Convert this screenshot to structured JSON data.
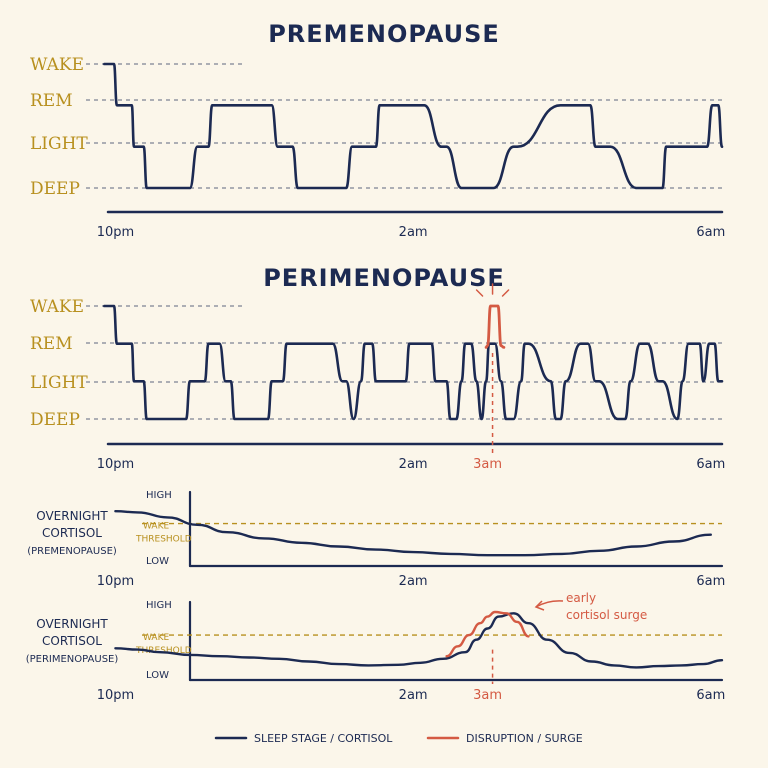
{
  "colors": {
    "line": "#1c2a52",
    "accent": "#d45a43",
    "threshold": "#b8901f",
    "background": "#fbf6ea"
  },
  "chart_data": [
    {
      "type": "line",
      "title": "PREMENOPAUSE",
      "y_categories": [
        "WAKE",
        "REM",
        "LIGHT",
        "DEEP"
      ],
      "x_ticks": [
        "10pm",
        "2am",
        "6am"
      ],
      "x_tick_hours": [
        22,
        26,
        30
      ],
      "x_range": [
        21.9,
        30.15
      ],
      "series": [
        {
          "x": [
            21.85,
            21.98,
            22.02,
            22.1,
            22.22,
            22.25,
            22.38,
            22.42,
            22.6,
            23.0,
            23.1,
            23.25,
            23.3,
            23.6,
            24.1,
            24.18,
            24.38,
            24.45,
            24.65,
            25.1,
            25.18,
            25.5,
            25.55,
            26.1,
            26.15,
            26.38,
            26.45,
            26.65,
            27.0,
            27.08,
            27.35,
            27.4,
            27.98,
            28.05,
            28.38,
            28.45,
            28.65,
            29.0,
            29.08,
            29.35,
            29.4,
            29.95,
            30.02,
            30.1,
            30.15
          ],
          "y": [
            3,
            3,
            2,
            2,
            2,
            1,
            1,
            0,
            0,
            0,
            1,
            1,
            2,
            2,
            2,
            1,
            1,
            0,
            0,
            0,
            1,
            1,
            2,
            2,
            2,
            1,
            1,
            0,
            0,
            0,
            1,
            1,
            2,
            2,
            2,
            1,
            1,
            0,
            0,
            0,
            1,
            1,
            2,
            2,
            1
          ],
          "y_units": "stage index (0=DEEP,1=LIGHT,2=REM,3=WAKE)"
        }
      ]
    },
    {
      "type": "line",
      "title": "PERIMENOPAUSE",
      "y_categories": [
        "WAKE",
        "REM",
        "LIGHT",
        "DEEP"
      ],
      "x_ticks": [
        "10pm",
        "2am",
        "3am",
        "6am"
      ],
      "x_tick_hours": [
        22,
        26,
        27,
        30
      ],
      "x_range": [
        21.9,
        30.15
      ],
      "annotation": {
        "label": "3am",
        "x": 27.0
      },
      "series": [
        {
          "x": [
            21.85,
            21.98,
            22.02,
            22.1,
            22.22,
            22.25,
            22.38,
            22.42,
            22.8,
            22.95,
            23.0,
            23.2,
            23.25,
            23.4,
            23.48,
            23.55,
            23.6,
            23.95,
            24.05,
            24.1,
            24.25,
            24.3,
            24.85,
            24.92,
            25.05,
            25.1,
            25.2,
            25.3,
            25.35,
            25.45,
            25.5,
            25.55,
            25.9,
            25.95,
            26.25,
            26.3,
            26.45,
            26.5,
            26.58,
            26.65,
            26.7,
            26.78,
            26.85,
            26.92,
            26.98,
            27.02,
            27.1,
            27.18,
            27.25,
            27.35,
            27.45,
            27.5,
            27.55,
            27.85,
            27.92,
            27.98,
            28.05,
            28.25,
            28.35,
            28.45,
            28.5,
            28.75,
            28.85,
            28.92,
            29.05,
            29.15,
            29.3,
            29.35,
            29.55,
            29.62,
            29.7,
            29.78,
            29.85,
            29.9,
            29.98,
            30.05,
            30.1,
            30.15
          ],
          "y": [
            3,
            3,
            2,
            2,
            2,
            1,
            1,
            0,
            0,
            0,
            1,
            1,
            2,
            2,
            1,
            1,
            0,
            0,
            0,
            1,
            1,
            2,
            2,
            2,
            1,
            1,
            0,
            1,
            2,
            2,
            1,
            1,
            1,
            2,
            2,
            1,
            1,
            0,
            0,
            1,
            2,
            2,
            1,
            0,
            1,
            2,
            2,
            1,
            0,
            0,
            1,
            2,
            2,
            1,
            0,
            0,
            1,
            2,
            2,
            1,
            1,
            0,
            0,
            1,
            2,
            2,
            1,
            1,
            0,
            1,
            2,
            2,
            2,
            1,
            2,
            2,
            1,
            1
          ]
        },
        {
          "name": "",
          "x": [
            26.98,
            27.0,
            27.04,
            27.14,
            27.18,
            27.22
          ],
          "y": [
            1.9,
            1.95,
            3,
            3,
            1.95,
            1.9
          ]
        }
      ]
    },
    {
      "type": "line",
      "title": "OVERNIGHT CORTISOL (PREMENOPAUSE)",
      "y_axis_labels": [
        "HIGH",
        "LOW"
      ],
      "threshold_label": "WAKE THRESHOLD",
      "threshold_value": 0.62,
      "x_ticks": [
        "10pm",
        "2am",
        "6am"
      ],
      "x_tick_hours": [
        22,
        26,
        30
      ],
      "x_range": [
        21.9,
        30.15
      ],
      "y_range": [
        0,
        1
      ],
      "series": [
        {
          "x": [
            22.0,
            22.3,
            22.7,
            23.1,
            23.5,
            24.0,
            24.5,
            25.0,
            25.5,
            26.0,
            26.5,
            27.0,
            27.5,
            28.0,
            28.5,
            29.0,
            29.5,
            30.0
          ],
          "y": [
            0.82,
            0.8,
            0.72,
            0.6,
            0.48,
            0.38,
            0.31,
            0.25,
            0.2,
            0.16,
            0.13,
            0.11,
            0.11,
            0.13,
            0.18,
            0.25,
            0.33,
            0.44
          ]
        }
      ]
    },
    {
      "type": "line",
      "title": "OVERNIGHT CORTISOL (PERIMENOPAUSE)",
      "y_axis_labels": [
        "HIGH",
        "LOW"
      ],
      "threshold_label": "WAKE THRESHOLD",
      "threshold_value": 0.62,
      "x_ticks": [
        "10pm",
        "2am",
        "3am",
        "6am"
      ],
      "x_tick_hours": [
        22,
        26,
        27,
        30
      ],
      "x_range": [
        21.9,
        30.15
      ],
      "y_range": [
        0,
        1
      ],
      "annotation": {
        "label": "early cortisol surge",
        "x": 27.0
      },
      "series": [
        {
          "x": [
            22.0,
            22.3,
            22.6,
            23.0,
            23.4,
            23.8,
            24.2,
            24.6,
            25.0,
            25.4,
            25.8,
            26.1,
            26.4,
            26.7,
            26.85,
            27.0,
            27.15,
            27.35,
            27.55,
            27.8,
            28.1,
            28.4,
            28.7,
            29.0,
            29.3,
            29.6,
            29.9,
            30.15
          ],
          "y": [
            0.42,
            0.4,
            0.36,
            0.32,
            0.3,
            0.28,
            0.26,
            0.22,
            0.18,
            0.16,
            0.17,
            0.2,
            0.26,
            0.36,
            0.55,
            0.72,
            0.9,
            0.95,
            0.8,
            0.55,
            0.35,
            0.22,
            0.16,
            0.13,
            0.15,
            0.16,
            0.18,
            0.24
          ]
        },
        {
          "name": "",
          "x": [
            26.45,
            26.6,
            26.75,
            26.9,
            27.0,
            27.1,
            27.25,
            27.4,
            27.55
          ],
          "y": [
            0.3,
            0.45,
            0.62,
            0.8,
            0.9,
            0.97,
            0.95,
            0.82,
            0.6
          ]
        }
      ]
    }
  ],
  "labels": {
    "cortisol_side": {
      "line1": "OVERNIGHT",
      "line2": "CORTISOL",
      "pre": "(PREMENOPAUSE)",
      "peri": "(PERIMENOPAUSE)"
    },
    "early_surge_1": "early",
    "early_surge_2": "cortisol surge",
    "wake_thr_1": "WAKE",
    "wake_thr_2": "THRESHOLD"
  },
  "legend": [
    {
      "label": "SLEEP STAGE / CORTISOL",
      "color": "#1c2a52"
    },
    {
      "label": "DISRUPTION / SURGE",
      "color": "#d45a43"
    }
  ]
}
